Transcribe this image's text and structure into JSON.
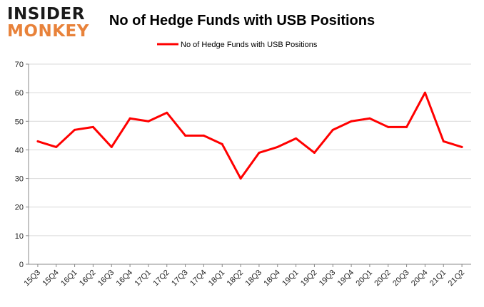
{
  "logo": {
    "line1": "INSIDER",
    "line2": "MONKEY"
  },
  "colors": {
    "series": "#ff0000",
    "grid": "#d9d9d9",
    "axis": "#888888",
    "logo_dark": "#1a1a1a",
    "logo_accent": "#e8823a"
  },
  "chart_data": {
    "type": "line",
    "title": "No of Hedge Funds with USB Positions",
    "legend_position": "top-center",
    "grid": true,
    "ylim": [
      0,
      70
    ],
    "yticks": [
      "0",
      "10",
      "20",
      "30",
      "40",
      "50",
      "60",
      "70"
    ],
    "categories": [
      "15Q3",
      "15Q4",
      "16Q1",
      "16Q2",
      "16Q3",
      "16Q4",
      "17Q1",
      "17Q2",
      "17Q3",
      "17Q4",
      "18Q1",
      "18Q2",
      "18Q3",
      "18Q4",
      "19Q1",
      "19Q2",
      "19Q3",
      "19Q4",
      "20Q1",
      "20Q2",
      "20Q3",
      "20Q4",
      "21Q1",
      "21Q2"
    ],
    "series": [
      {
        "name": "No of Hedge Funds with USB Positions",
        "values": [
          43,
          41,
          47,
          48,
          41,
          51,
          50,
          53,
          45,
          45,
          42,
          30,
          39,
          41,
          44,
          39,
          47,
          50,
          51,
          48,
          48,
          60,
          43,
          41
        ]
      }
    ]
  }
}
